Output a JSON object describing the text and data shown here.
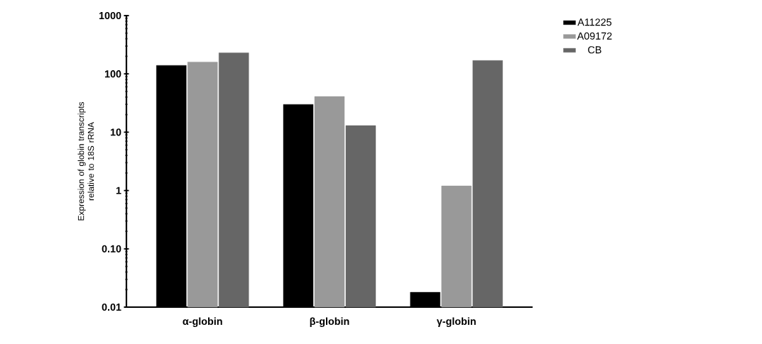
{
  "chart_data": {
    "type": "bar",
    "ylabel": "Expression of globin transcripts relative to 18S rRNA",
    "categories": [
      "α-globin",
      "β-globin",
      "γ-globin"
    ],
    "series": [
      {
        "name": "A11225",
        "color": "#000000",
        "values": [
          140,
          30,
          0.018
        ]
      },
      {
        "name": "A09172",
        "color": "#999999",
        "values": [
          160,
          41,
          1.2
        ]
      },
      {
        "name": "CB",
        "color": "#666666",
        "values": [
          230,
          13,
          170
        ]
      }
    ],
    "log": "y",
    "ylim": [
      0.01,
      1000
    ],
    "yticks": [
      0.01,
      {
        "value": 0.1,
        "label": "0.10"
      },
      1,
      10,
      100,
      1000
    ],
    "legend": "top right",
    "grid": false
  }
}
